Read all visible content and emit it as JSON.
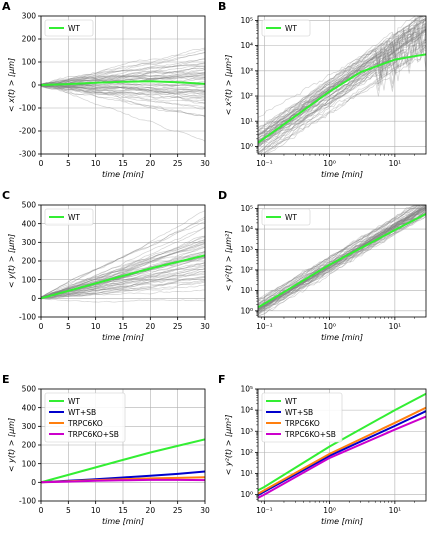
{
  "chart_data": [
    {
      "panel": "A",
      "type": "line",
      "scale": "linear",
      "xlabel": "time [min]",
      "ylabel": "< x(t) > [μm]",
      "xlim": [
        0,
        30
      ],
      "ylim": [
        -300,
        300
      ],
      "xticks": [
        0,
        5,
        10,
        15,
        20,
        25,
        30
      ],
      "yticks": [
        -300,
        -200,
        -100,
        0,
        100,
        200,
        300
      ],
      "grid": true,
      "legend": "top-left",
      "background_tracks": "many grey individual cell tracks (~50), x(t) spreading roughly between -160 and +290 μm at 30 min",
      "series": [
        {
          "name": "WT",
          "color": "#33ee33",
          "x": [
            0,
            5,
            10,
            15,
            20,
            25,
            30
          ],
          "y": [
            0,
            4,
            10,
            14,
            16,
            12,
            5
          ]
        }
      ]
    },
    {
      "panel": "B",
      "type": "line",
      "scale": "loglog",
      "xlabel": "time [min]",
      "ylabel": "< x²(t) > [μm²]",
      "xlim": [
        0.08,
        30
      ],
      "ylim": [
        0.5,
        150000
      ],
      "xticks": [
        0.1,
        1,
        10
      ],
      "xtick_labels": [
        "10⁻¹",
        "10⁰",
        "10¹"
      ],
      "yticks": [
        1,
        10,
        100,
        1000,
        10000,
        100000
      ],
      "ytick_labels": [
        "10⁰",
        "10¹",
        "10²",
        "10³",
        "10⁴",
        "10⁵"
      ],
      "grid": true,
      "legend": "top-left",
      "series": [
        {
          "name": "WT",
          "color": "#33ee33",
          "x": [
            0.08,
            0.1,
            0.3,
            1,
            3,
            10,
            20,
            30
          ],
          "y": [
            1.4,
            2.1,
            16,
            150,
            900,
            2800,
            3800,
            4500
          ]
        }
      ]
    },
    {
      "panel": "C",
      "type": "line",
      "scale": "linear",
      "xlabel": "time [min]",
      "ylabel": "< y(t) > [μm]",
      "xlim": [
        0,
        30
      ],
      "ylim": [
        -100,
        500
      ],
      "xticks": [
        0,
        5,
        10,
        15,
        20,
        25,
        30
      ],
      "yticks": [
        -100,
        0,
        100,
        200,
        300,
        400,
        500
      ],
      "grid": true,
      "legend": "top-left",
      "series": [
        {
          "name": "WT",
          "color": "#33ee33",
          "x": [
            0,
            5,
            10,
            15,
            20,
            25,
            30
          ],
          "y": [
            0,
            40,
            80,
            120,
            160,
            195,
            230
          ]
        }
      ]
    },
    {
      "panel": "D",
      "type": "line",
      "scale": "loglog",
      "xlabel": "time [min]",
      "ylabel": "< y²(t) > [μm²]",
      "xlim": [
        0.08,
        30
      ],
      "ylim": [
        0.5,
        150000
      ],
      "xticks": [
        0.1,
        1,
        10
      ],
      "xtick_labels": [
        "10⁻¹",
        "10⁰",
        "10¹"
      ],
      "yticks": [
        1,
        10,
        100,
        1000,
        10000,
        100000
      ],
      "ytick_labels": [
        "10⁰",
        "10¹",
        "10²",
        "10³",
        "10⁴",
        "10⁵"
      ],
      "grid": true,
      "legend": "top-left",
      "series": [
        {
          "name": "WT",
          "color": "#33ee33",
          "x": [
            0.08,
            0.1,
            1,
            10,
            30
          ],
          "y": [
            1.5,
            2.2,
            180,
            9000,
            55000
          ]
        }
      ]
    },
    {
      "panel": "E",
      "type": "line",
      "scale": "linear",
      "xlabel": "time [min]",
      "ylabel": "< y(t) > [μm]",
      "xlim": [
        0,
        30
      ],
      "ylim": [
        -100,
        500
      ],
      "xticks": [
        0,
        5,
        10,
        15,
        20,
        25,
        30
      ],
      "yticks": [
        -100,
        0,
        100,
        200,
        300,
        400,
        500
      ],
      "grid": true,
      "legend": "top-left",
      "series": [
        {
          "name": "WT",
          "color": "#33ee33",
          "x": [
            0,
            5,
            10,
            15,
            20,
            25,
            30
          ],
          "y": [
            0,
            40,
            80,
            120,
            160,
            195,
            230
          ]
        },
        {
          "name": "WT+SB",
          "color": "#0000cc",
          "x": [
            0,
            5,
            10,
            15,
            20,
            25,
            30
          ],
          "y": [
            0,
            8,
            17,
            26,
            35,
            45,
            58
          ]
        },
        {
          "name": "TRPC6KO",
          "color": "#ff7f0e",
          "x": [
            0,
            5,
            10,
            15,
            20,
            25,
            30
          ],
          "y": [
            0,
            6,
            12,
            17,
            21,
            24,
            27
          ]
        },
        {
          "name": "TRPC6KO+SB",
          "color": "#cc00cc",
          "x": [
            0,
            5,
            10,
            15,
            20,
            25,
            30
          ],
          "y": [
            0,
            4,
            8,
            11,
            13,
            13,
            12
          ]
        }
      ]
    },
    {
      "panel": "F",
      "type": "line",
      "scale": "loglog",
      "xlabel": "time [min]",
      "ylabel": "< y²(t) > [μm²]",
      "xlim": [
        0.08,
        30
      ],
      "ylim": [
        0.5,
        100000
      ],
      "xticks": [
        0.1,
        1,
        10
      ],
      "xtick_labels": [
        "10⁻¹",
        "10⁰",
        "10¹"
      ],
      "yticks": [
        1,
        10,
        100,
        1000,
        10000,
        100000
      ],
      "ytick_labels": [
        "10⁰",
        "10¹",
        "10²",
        "10³",
        "10⁴",
        "10⁵"
      ],
      "grid": true,
      "legend": "top-left",
      "series": [
        {
          "name": "WT",
          "color": "#33ee33",
          "x": [
            0.08,
            0.1,
            1,
            10,
            30
          ],
          "y": [
            1.6,
            2.3,
            190,
            10000,
            60000
          ]
        },
        {
          "name": "WT+SB",
          "color": "#0000cc",
          "x": [
            0.08,
            0.1,
            1,
            10,
            30
          ],
          "y": [
            0.95,
            1.4,
            70,
            1800,
            9000
          ]
        },
        {
          "name": "TRPC6KO",
          "color": "#ff7f0e",
          "x": [
            0.08,
            0.1,
            1,
            10,
            30
          ],
          "y": [
            1.1,
            1.6,
            85,
            2500,
            13000
          ]
        },
        {
          "name": "TRPC6KO+SB",
          "color": "#cc00cc",
          "x": [
            0.08,
            0.1,
            1,
            10,
            30
          ],
          "y": [
            0.7,
            1.0,
            55,
            1200,
            5000
          ]
        }
      ]
    }
  ]
}
